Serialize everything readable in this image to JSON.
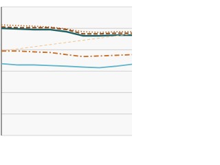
{
  "chart_data": {
    "type": "line",
    "categories": [
      null,
      null,
      null,
      null,
      null,
      null,
      null,
      null,
      null
    ],
    "series": [
      {
        "color": "#b5651d",
        "dash": "1.5 2.5",
        "width": 1.6,
        "values": [
          51.6,
          51.3,
          51,
          50.6,
          49.7,
          48.4,
          48.1,
          48.4,
          48.4
        ]
      },
      {
        "color": "#8b4a1c",
        "dash": "6 3",
        "width": 2,
        "values": [
          50.6,
          50.3,
          50.3,
          50.3,
          49.4,
          47.4,
          47.4,
          47.7,
          47.7
        ]
      },
      {
        "color": "#1d5f63",
        "dash": "none",
        "width": 2.4,
        "values": [
          50,
          49.7,
          49.4,
          49.4,
          48.4,
          46.5,
          46.5,
          46.8,
          46.8
        ]
      },
      {
        "color": "#f0c48a",
        "dash": "4 3",
        "width": 1,
        "values": [
          39.4,
          40.4,
          41.4,
          42.4,
          43.4,
          44.4,
          45.4,
          46.4,
          47.4
        ]
      },
      {
        "color": "#c8691e",
        "dash": "7 3 2 3",
        "width": 1.8,
        "values": [
          39.4,
          39.4,
          39,
          38.7,
          37.7,
          36.8,
          37.1,
          37.4,
          37.7
        ]
      },
      {
        "color": "#5db3c9",
        "dash": "none",
        "width": 1.8,
        "values": [
          33.5,
          32.9,
          32.9,
          32.6,
          32.3,
          31.9,
          31.6,
          32.3,
          33.2
        ]
      }
    ],
    "ylim": [
      0,
      60
    ],
    "yticks": [
      0,
      10,
      20,
      30,
      40,
      50,
      60
    ],
    "grid": true
  }
}
